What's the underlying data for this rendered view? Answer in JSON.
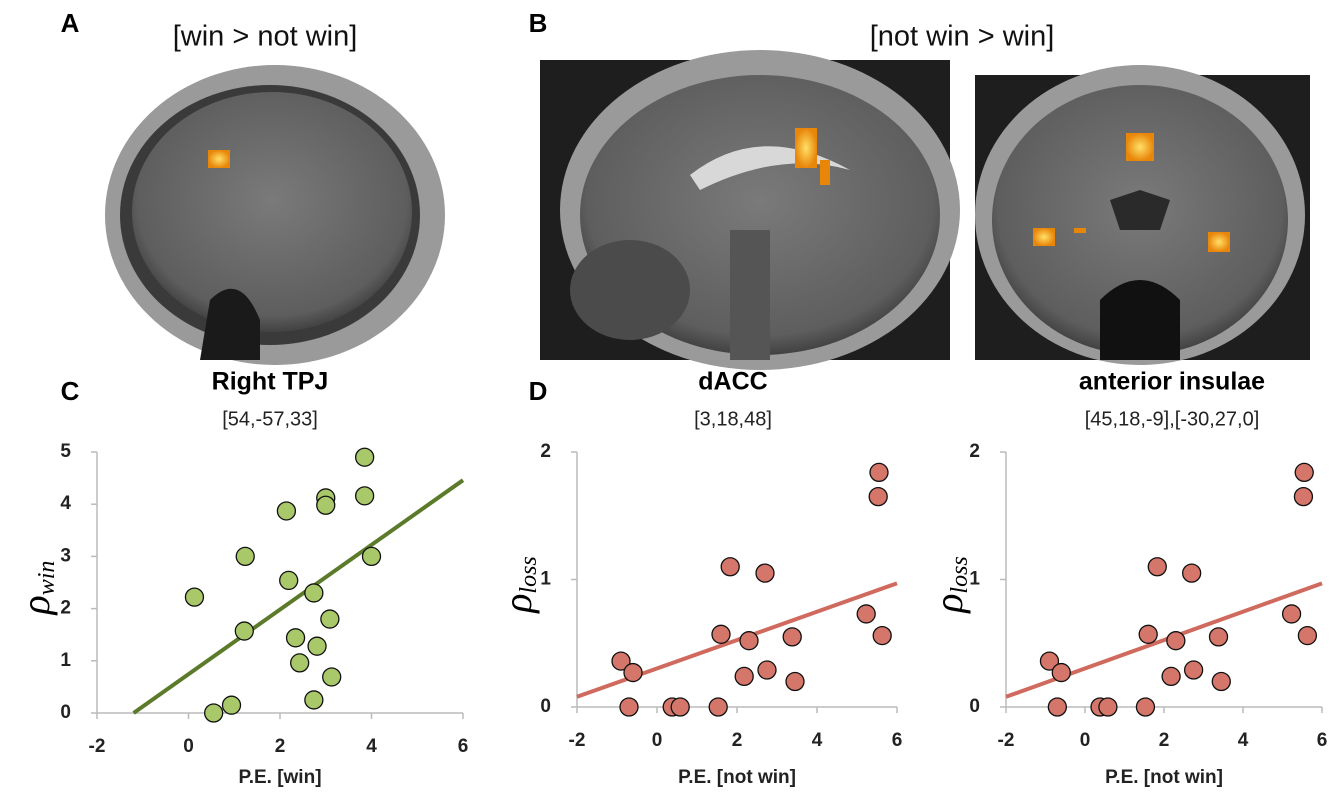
{
  "panel_labels": [
    "A",
    "B",
    "C",
    "D"
  ],
  "image_titles": [
    "[win > not win]",
    "[not win > win]"
  ],
  "chart_data": [
    {
      "type": "scatter",
      "title": "Right TPJ",
      "subtitle": "[54,-57,33]",
      "x_label": "P.E. [win]",
      "y_label": "ρ",
      "y_label_sub": "win",
      "x": [
        0.55,
        0.94,
        0.13,
        1.22,
        1.24,
        2.14,
        2.19,
        2.34,
        2.43,
        2.74,
        2.81,
        2.74,
        3.0,
        3.0,
        3.09,
        3.13,
        3.85,
        3.85,
        4.0
      ],
      "y": [
        0,
        0.15,
        2.22,
        1.57,
        3.0,
        3.87,
        2.54,
        1.44,
        0.96,
        2.3,
        1.28,
        0.25,
        4.12,
        3.98,
        1.8,
        0.69,
        4.9,
        4.16,
        3.0
      ],
      "color": "#a8c86a",
      "fit": {
        "x": [
          -1.2,
          6
        ],
        "y": [
          0,
          4.46
        ],
        "color": "#5b7a2a"
      },
      "xlim": [
        -2,
        6
      ],
      "ylim": [
        0,
        5
      ],
      "xticks": [
        -2,
        0,
        2,
        4,
        6
      ],
      "yticks": [
        0,
        1,
        2,
        3,
        4,
        5
      ]
    },
    {
      "type": "scatter",
      "title": "dACC",
      "subtitle": "[3,18,48]",
      "x_label": "P.E. [not win]",
      "y_label": "ρ",
      "y_label_sub": "loss",
      "x": [
        -0.9,
        -0.6,
        -0.7,
        0.38,
        0.58,
        1.53,
        1.6,
        1.83,
        2.18,
        2.3,
        2.7,
        2.75,
        3.38,
        3.45,
        5.23,
        5.55,
        5.53,
        5.63
      ],
      "y": [
        0.36,
        0.27,
        0,
        0,
        0,
        0,
        0.57,
        1.1,
        0.24,
        0.52,
        1.05,
        0.29,
        0.55,
        0.2,
        0.73,
        1.84,
        1.65,
        0.56
      ],
      "color": "#d5766a",
      "fit": {
        "x": [
          -2,
          6
        ],
        "y": [
          0.08,
          0.97
        ],
        "color": "#d06a5e"
      },
      "xlim": [
        -2,
        6
      ],
      "ylim": [
        0,
        2
      ],
      "xticks": [
        -2,
        0,
        2,
        4,
        6
      ],
      "yticks": [
        0,
        1,
        2
      ]
    },
    {
      "type": "scatter",
      "title": "anterior insulae",
      "subtitle": "[45,18,-9],[-30,27,0]",
      "x_label": "P.E. [not win]",
      "y_label": "ρ",
      "y_label_sub": "loss",
      "x": [
        -0.9,
        -0.6,
        -0.7,
        0.38,
        0.58,
        1.53,
        1.6,
        1.83,
        2.18,
        2.3,
        2.7,
        2.75,
        3.38,
        3.45,
        5.23,
        5.55,
        5.53,
        5.63
      ],
      "y": [
        0.36,
        0.27,
        0,
        0,
        0,
        0,
        0.57,
        1.1,
        0.24,
        0.52,
        1.05,
        0.29,
        0.55,
        0.2,
        0.73,
        1.84,
        1.65,
        0.56
      ],
      "color": "#d5766a",
      "fit": {
        "x": [
          -2,
          6
        ],
        "y": [
          0.08,
          0.97
        ],
        "color": "#d06a5e"
      },
      "xlim": [
        -2,
        6
      ],
      "ylim": [
        0,
        2
      ],
      "xticks": [
        -2,
        0,
        2,
        4,
        6
      ],
      "yticks": [
        0,
        1,
        2
      ]
    }
  ]
}
